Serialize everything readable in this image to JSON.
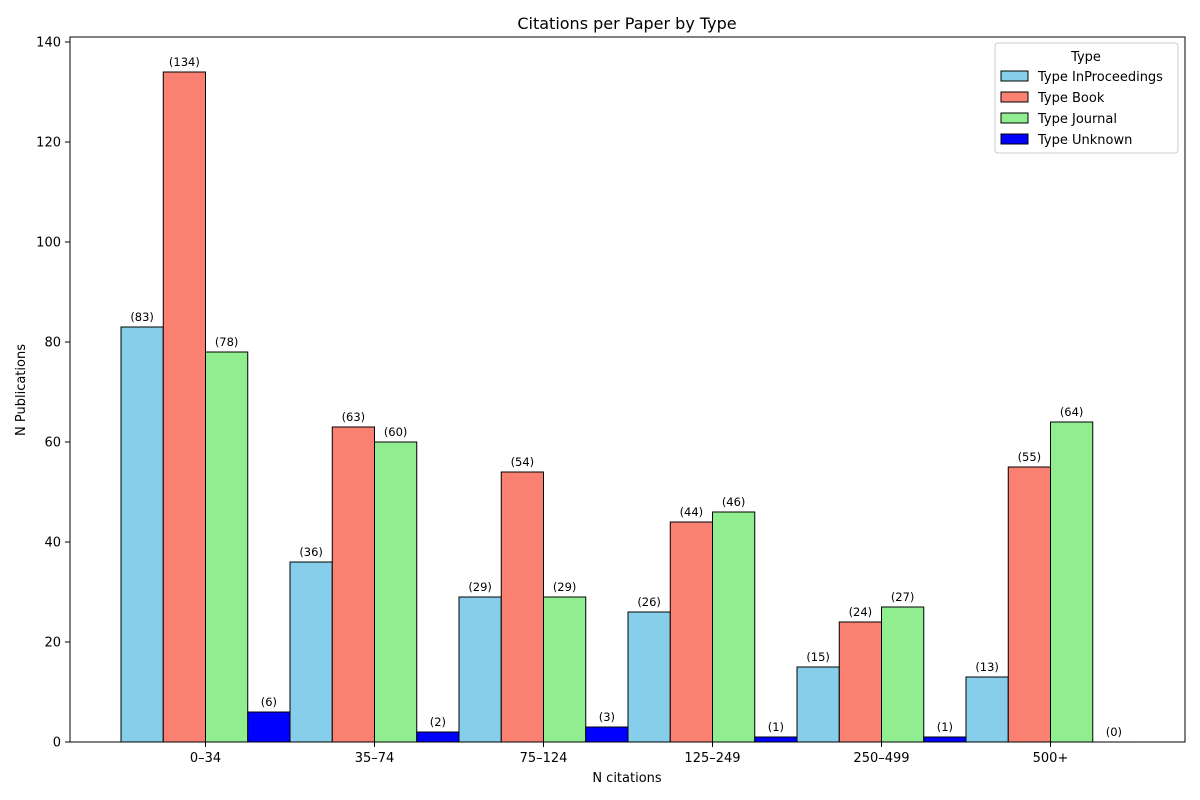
{
  "chart_data": {
    "type": "bar",
    "title": "Citations per Paper by Type",
    "xlabel": "N citations",
    "ylabel": "N Publications",
    "categories": [
      "0–34",
      "35–74",
      "75–124",
      "125–249",
      "250–499",
      "500+"
    ],
    "series": [
      {
        "name": "Type InProceedings",
        "color": "#87ceeb",
        "values": [
          83,
          36,
          29,
          26,
          15,
          13
        ]
      },
      {
        "name": "Type Book",
        "color": "#fa8072",
        "values": [
          134,
          63,
          54,
          44,
          24,
          55
        ]
      },
      {
        "name": "Type Journal",
        "color": "#90ee90",
        "values": [
          78,
          60,
          29,
          46,
          27,
          64
        ]
      },
      {
        "name": "Type Unknown",
        "color": "#0000ff",
        "values": [
          6,
          2,
          3,
          1,
          1,
          0
        ]
      }
    ],
    "data_labels": [
      [
        "(83)",
        "(36)",
        "(29)",
        "(26)",
        "(15)",
        "(13)"
      ],
      [
        "(134)",
        "(63)",
        "(54)",
        "(44)",
        "(24)",
        "(55)"
      ],
      [
        "(78)",
        "(60)",
        "(29)",
        "(46)",
        "(27)",
        "(64)"
      ],
      [
        "(6)",
        "(2)",
        "(3)",
        "(1)",
        "(1)",
        "(0)"
      ]
    ],
    "ylim": [
      0,
      141
    ],
    "yticks": [
      0,
      20,
      40,
      60,
      80,
      100,
      120,
      140
    ],
    "grid": false,
    "legend": {
      "title": "Type",
      "placement": "top-right"
    }
  }
}
